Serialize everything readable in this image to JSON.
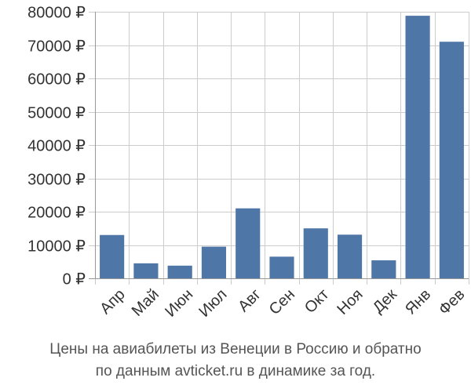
{
  "chart_data": {
    "type": "bar",
    "title": "Цены на авиабилеты из Венеции в Россию и обратно по данным avticket.ru в динамике за год.",
    "caption_lines": [
      "Цены на авиабилеты из Венеции в Россию и обратно",
      "по данным avticket.ru в динамике за год."
    ],
    "categories": [
      "Апр",
      "Май",
      "Июн",
      "Июл",
      "Авг",
      "Сен",
      "Окт",
      "Ноя",
      "Дек",
      "Янв",
      "Фев"
    ],
    "values": [
      13000,
      4500,
      3800,
      9500,
      21000,
      6500,
      15000,
      13100,
      5400,
      78800,
      71000
    ],
    "ylim": [
      0,
      80000
    ],
    "yticks": [
      0,
      10000,
      20000,
      30000,
      40000,
      50000,
      60000,
      70000,
      80000
    ],
    "ytick_labels": [
      "0 ₽",
      "10000 ₽",
      "20000 ₽",
      "30000 ₽",
      "40000 ₽",
      "50000 ₽",
      "60000 ₽",
      "70000 ₽",
      "80000 ₽"
    ],
    "xlabel": "",
    "ylabel": "",
    "grid": true,
    "colors": {
      "bar": "#4e76a6",
      "grid": "#cccccc",
      "axis": "#999999"
    }
  }
}
